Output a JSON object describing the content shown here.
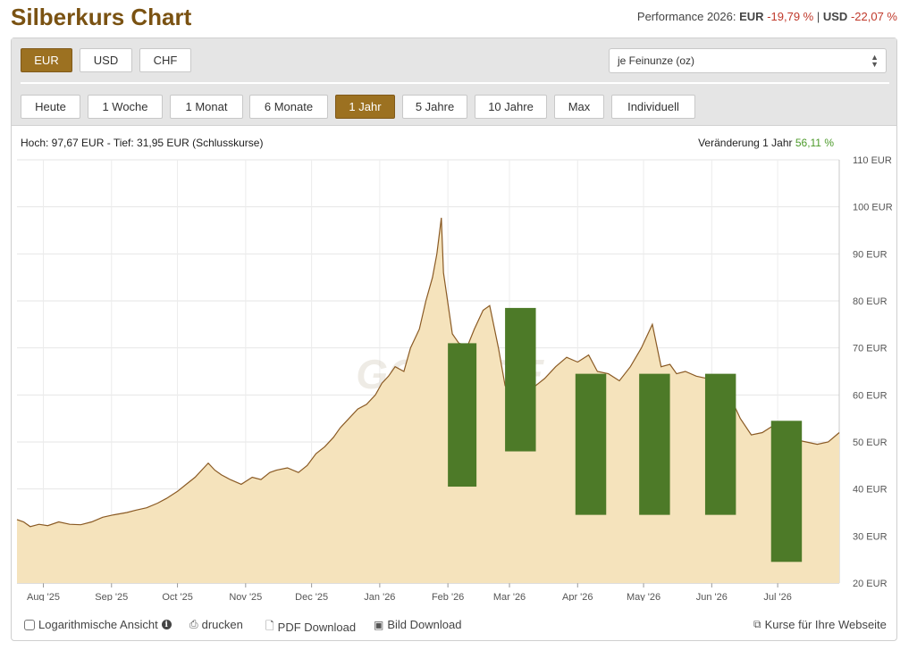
{
  "page": {
    "title": "Silberkurs Chart",
    "performance_prefix": "Performance 2026:",
    "eur_label": "EUR",
    "eur_value": "-19,79 %",
    "separator": "|",
    "usd_label": "USD",
    "usd_value": "-22,07 %"
  },
  "toolbar": {
    "currencies": [
      "EUR",
      "USD",
      "CHF"
    ],
    "active_currency": "EUR",
    "unit_select": "je Feinunze (oz)",
    "ranges": [
      "Heute",
      "1 Woche",
      "1 Monat",
      "6 Monate",
      "1 Jahr",
      "5 Jahre",
      "10 Jahre",
      "Max",
      "Individuell"
    ],
    "active_range": "1 Jahr"
  },
  "info": {
    "high_low": "Hoch: 97,67 EUR - Tief: 31,95 EUR (Schlusskurse)",
    "change_label": "Veränderung 1 Jahr",
    "change_value": "56,11 %"
  },
  "footer": {
    "log_label": "Logarithmische Ansicht",
    "print_label": "drucken",
    "pdf_label": "PDF Download",
    "image_label": "Bild Download",
    "widget_label": "Kurse für Ihre Webseite"
  },
  "colors": {
    "brand": "#7a5212",
    "active_button": "#9c7121",
    "area_fill": "#f5e3bc",
    "line": "#8a5a24",
    "overlay_bars": "#4d7a28",
    "negative": "#c0392b",
    "positive": "#4c9a2a"
  },
  "chart_data": {
    "type": "area",
    "title": "",
    "xlabel": "",
    "ylabel": "",
    "y_unit": "EUR",
    "ylim": [
      20,
      110
    ],
    "y_ticks": [
      20,
      30,
      40,
      50,
      60,
      70,
      80,
      90,
      100,
      110
    ],
    "x_tick_labels": [
      "Aug '25",
      "Sep '25",
      "Oct '25",
      "Nov '25",
      "Dec '25",
      "Jan '26",
      "Feb '26",
      "Mar '26",
      "Apr '26",
      "May '26",
      "Jun '26",
      "Jul '26"
    ],
    "x_domain": [
      "2025-07-20",
      "2026-07-29"
    ],
    "grid": true,
    "series": [
      {
        "values_x": [
          "2025-07-20",
          "2025-07-23",
          "2025-07-26",
          "2025-07-30",
          "2025-08-03",
          "2025-08-08",
          "2025-08-13",
          "2025-08-18",
          "2025-08-23",
          "2025-08-28",
          "2025-09-02",
          "2025-09-08",
          "2025-09-12",
          "2025-09-17",
          "2025-09-22",
          "2025-09-26",
          "2025-10-01",
          "2025-10-05",
          "2025-10-09",
          "2025-10-12",
          "2025-10-15",
          "2025-10-18",
          "2025-10-21",
          "2025-10-25",
          "2025-10-30",
          "2025-11-04",
          "2025-11-08",
          "2025-11-12",
          "2025-11-15",
          "2025-11-20",
          "2025-11-25",
          "2025-11-29",
          "2025-12-03",
          "2025-12-07",
          "2025-12-11",
          "2025-12-14",
          "2025-12-18",
          "2025-12-22",
          "2025-12-26",
          "2025-12-30",
          "2026-01-02",
          "2026-01-05",
          "2026-01-08",
          "2026-01-12",
          "2026-01-15",
          "2026-01-19",
          "2026-01-22",
          "2026-01-25",
          "2026-01-27",
          "2026-01-29",
          "2026-01-30",
          "2026-02-03",
          "2026-02-06",
          "2026-02-10",
          "2026-02-13",
          "2026-02-17",
          "2026-02-20",
          "2026-02-24",
          "2026-02-27",
          "2026-03-02",
          "2026-03-05",
          "2026-03-09",
          "2026-03-13",
          "2026-03-17",
          "2026-03-22",
          "2026-03-27",
          "2026-04-01",
          "2026-04-06",
          "2026-04-10",
          "2026-04-15",
          "2026-04-20",
          "2026-04-25",
          "2026-04-30",
          "2026-05-05",
          "2026-05-09",
          "2026-05-13",
          "2026-05-16",
          "2026-05-20",
          "2026-05-25",
          "2026-05-30",
          "2026-06-04",
          "2026-06-09",
          "2026-06-14",
          "2026-06-19",
          "2026-06-24",
          "2026-06-29",
          "2026-07-04",
          "2026-07-09",
          "2026-07-14",
          "2026-07-19",
          "2026-07-24",
          "2026-07-29"
        ],
        "values": [
          33.5,
          33.0,
          32.0,
          32.5,
          32.2,
          33.0,
          32.5,
          32.4,
          33.0,
          34.0,
          34.5,
          35.0,
          35.5,
          36.0,
          37.0,
          38.0,
          39.5,
          41.0,
          42.5,
          44.0,
          45.5,
          44.0,
          43.0,
          42.0,
          41.0,
          42.5,
          42.0,
          43.5,
          44.0,
          44.5,
          43.5,
          45.0,
          47.5,
          49.0,
          51.0,
          53.0,
          55.0,
          57.0,
          58.0,
          60.0,
          62.5,
          64.0,
          66.0,
          65.0,
          70.0,
          74.0,
          80.0,
          85.0,
          90.0,
          97.67,
          86.0,
          73.0,
          71.0,
          70.5,
          74.0,
          78.0,
          79.0,
          70.0,
          62.0,
          59.5,
          61.0,
          60.5,
          62.0,
          63.5,
          66.0,
          68.0,
          67.0,
          68.5,
          65.0,
          64.5,
          63.0,
          66.0,
          70.0,
          75.0,
          66.0,
          66.5,
          64.5,
          65.0,
          64.0,
          63.5,
          63.0,
          60.0,
          55.0,
          51.5,
          52.0,
          53.5,
          51.0,
          50.5,
          50.0,
          49.5,
          50.0,
          52.0
        ]
      }
    ],
    "overlay_bars": [
      {
        "x_start": "2026-02-01",
        "x_end": "2026-02-14",
        "low": 40.5,
        "high": 71.0
      },
      {
        "x_start": "2026-02-27",
        "x_end": "2026-03-13",
        "low": 48.0,
        "high": 78.5
      },
      {
        "x_start": "2026-03-31",
        "x_end": "2026-04-14",
        "low": 34.5,
        "high": 64.5
      },
      {
        "x_start": "2026-04-29",
        "x_end": "2026-05-13",
        "low": 34.5,
        "high": 64.5
      },
      {
        "x_start": "2026-05-29",
        "x_end": "2026-06-12",
        "low": 34.5,
        "high": 64.5
      },
      {
        "x_start": "2026-06-28",
        "x_end": "2026-07-12",
        "low": 24.5,
        "high": 54.5
      }
    ],
    "watermark": "GOLD.DE"
  }
}
